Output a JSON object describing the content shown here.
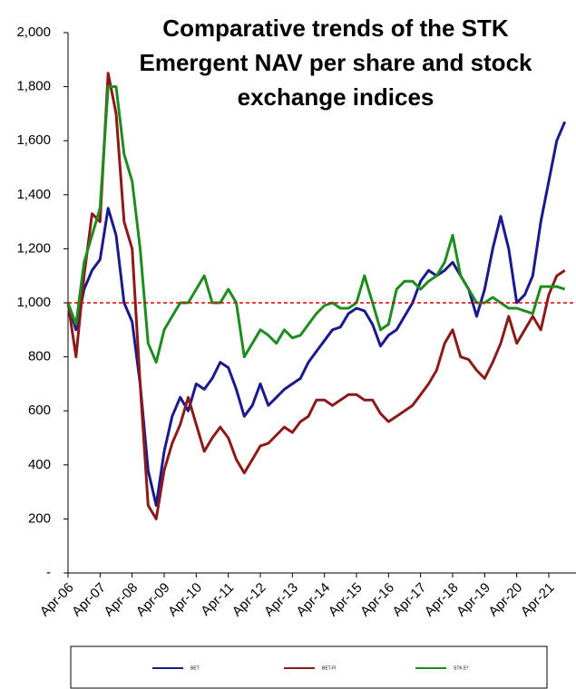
{
  "chart_data": {
    "type": "line",
    "title": "Comparative trends of the STK Emergent NAV per share and stock exchange indices",
    "categories": [
      "Apr-06",
      null,
      null,
      null,
      "Apr-07",
      null,
      null,
      null,
      "Apr-08",
      null,
      null,
      null,
      "Apr-09",
      null,
      null,
      null,
      "Apr-10",
      null,
      null,
      null,
      "Apr-11",
      null,
      null,
      null,
      "Apr-12",
      null,
      null,
      null,
      "Apr-13",
      null,
      null,
      null,
      "Apr-14",
      null,
      null,
      null,
      "Apr-15",
      null,
      null,
      null,
      "Apr-16",
      null,
      null,
      null,
      "Apr-17",
      null,
      null,
      null,
      "Apr-18",
      null,
      null,
      null,
      "Apr-19",
      null,
      null,
      null,
      "Apr-20",
      null,
      null,
      null,
      "Apr-21",
      null,
      null
    ],
    "series": [
      {
        "name": "BET",
        "color": "#1a1a8c",
        "values": [
          1000,
          900,
          1050,
          1120,
          1160,
          1350,
          1250,
          1000,
          930,
          700,
          380,
          250,
          450,
          580,
          650,
          600,
          700,
          680,
          720,
          780,
          760,
          680,
          580,
          620,
          700,
          620,
          650,
          680,
          700,
          720,
          780,
          820,
          860,
          900,
          910,
          960,
          980,
          970,
          920,
          840,
          880,
          900,
          950,
          1000,
          1080,
          1120,
          1100,
          1120,
          1150,
          1100,
          1050,
          950,
          1050,
          1200,
          1320,
          1200,
          1000,
          1030,
          1100,
          1300,
          1450,
          1600,
          1670
        ]
      },
      {
        "name": "BET-FI",
        "color": "#8b1a1a",
        "values": [
          1000,
          800,
          1100,
          1330,
          1300,
          1850,
          1700,
          1300,
          1200,
          700,
          250,
          200,
          380,
          480,
          550,
          650,
          550,
          450,
          500,
          540,
          500,
          420,
          370,
          420,
          470,
          480,
          510,
          540,
          520,
          560,
          580,
          640,
          640,
          620,
          640,
          660,
          660,
          640,
          640,
          590,
          560,
          580,
          600,
          620,
          660,
          700,
          750,
          850,
          900,
          800,
          790,
          750,
          720,
          780,
          850,
          950,
          850,
          900,
          950,
          900,
          1030,
          1100,
          1120
        ]
      },
      {
        "name": "STK E*",
        "color": "#1e8c1e",
        "values": [
          1000,
          920,
          1150,
          1250,
          1350,
          1800,
          1800,
          1550,
          1450,
          1200,
          850,
          780,
          900,
          950,
          1000,
          1000,
          1050,
          1100,
          1000,
          1000,
          1050,
          1000,
          800,
          850,
          900,
          880,
          850,
          900,
          870,
          880,
          920,
          960,
          990,
          1000,
          980,
          980,
          1000,
          1100,
          1000,
          900,
          920,
          1050,
          1080,
          1080,
          1050,
          1080,
          1100,
          1150,
          1250,
          1100,
          1050,
          1000,
          1000,
          1020,
          1000,
          980,
          980,
          970,
          960,
          1060,
          1060,
          1060,
          1050
        ]
      }
    ],
    "ylim": [
      0,
      2000
    ],
    "yticks": [
      {
        "value": 0,
        "label": "-"
      },
      200,
      400,
      600,
      {
        "value": 800,
        "label": "800"
      },
      {
        "value": 1000,
        "label": "1,000"
      },
      {
        "value": 1200,
        "label": "1,200"
      },
      {
        "value": 1400,
        "label": "1,400"
      },
      {
        "value": 1600,
        "label": "1,600"
      },
      {
        "value": 1800,
        "label": "1,800"
      },
      {
        "value": 2000,
        "label": "2,000"
      }
    ],
    "reference_line": {
      "value": 1000,
      "color": "#e00000"
    },
    "grid": false
  }
}
